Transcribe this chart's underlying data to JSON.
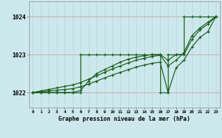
{
  "title": "Graphe pression niveau de la mer (hPa)",
  "bg_color": "#cce8ec",
  "grid_color_v": "#b8d8dc",
  "grid_color_h": "#c8a0a0",
  "line_color": "#1a5c1a",
  "xlim": [
    -0.5,
    23.5
  ],
  "ylim": [
    1021.6,
    1024.4
  ],
  "yticks": [
    1022,
    1023,
    1024
  ],
  "xtick_labels": [
    "0",
    "1",
    "2",
    "3",
    "4",
    "5",
    "6",
    "7",
    "8",
    "9",
    "10",
    "11",
    "12",
    "13",
    "14",
    "15",
    "16",
    "17",
    "18",
    "19",
    "20",
    "21",
    "22",
    "23"
  ],
  "series": [
    {
      "x": [
        0,
        1,
        2,
        3,
        4,
        5,
        6,
        6,
        7,
        8,
        9,
        10,
        11,
        12,
        13,
        14,
        15,
        16,
        16,
        17,
        17,
        18,
        19,
        19,
        20,
        21,
        22,
        23
      ],
      "y": [
        1022.0,
        1022.0,
        1022.0,
        1022.0,
        1022.0,
        1022.0,
        1022.0,
        1023.0,
        1023.0,
        1023.0,
        1023.0,
        1023.0,
        1023.0,
        1023.0,
        1023.0,
        1023.0,
        1023.0,
        1023.0,
        1022.0,
        1022.0,
        1023.0,
        1023.0,
        1023.0,
        1024.0,
        1024.0,
        1024.0,
        1024.0,
        1024.0
      ]
    },
    {
      "x": [
        0,
        1,
        2,
        3,
        4,
        5,
        6,
        7,
        8,
        9,
        10,
        11,
        12,
        13,
        14,
        15,
        16,
        17,
        18,
        19,
        20,
        21,
        22,
        23
      ],
      "y": [
        1022.0,
        1022.04,
        1022.08,
        1022.12,
        1022.16,
        1022.2,
        1022.26,
        1022.35,
        1022.44,
        1022.53,
        1022.62,
        1022.7,
        1022.78,
        1022.85,
        1022.9,
        1022.95,
        1022.98,
        1022.7,
        1022.85,
        1023.05,
        1023.5,
        1023.7,
        1023.85,
        1024.0
      ]
    },
    {
      "x": [
        0,
        1,
        2,
        3,
        4,
        5,
        6,
        7,
        8,
        9,
        10,
        11,
        12,
        13,
        14,
        15,
        16,
        17,
        18,
        19,
        20,
        21,
        22,
        23
      ],
      "y": [
        1022.0,
        1022.02,
        1022.04,
        1022.06,
        1022.08,
        1022.1,
        1022.15,
        1022.22,
        1022.3,
        1022.38,
        1022.46,
        1022.53,
        1022.6,
        1022.67,
        1022.72,
        1022.77,
        1022.8,
        1022.0,
        1022.65,
        1022.85,
        1023.2,
        1023.45,
        1023.6,
        1024.0
      ]
    },
    {
      "x": [
        0,
        1,
        2,
        3,
        4,
        5,
        6,
        7,
        8,
        9,
        10,
        11,
        12,
        13,
        14,
        15,
        16,
        17,
        18,
        19,
        20,
        21,
        22,
        23
      ],
      "y": [
        1022.0,
        1022.0,
        1022.0,
        1022.0,
        1022.0,
        1022.0,
        1022.05,
        1022.3,
        1022.5,
        1022.6,
        1022.7,
        1022.8,
        1022.88,
        1022.93,
        1022.97,
        1023.0,
        1023.0,
        1022.85,
        1023.0,
        1023.0,
        1023.4,
        1023.65,
        1023.8,
        1024.0
      ]
    }
  ]
}
